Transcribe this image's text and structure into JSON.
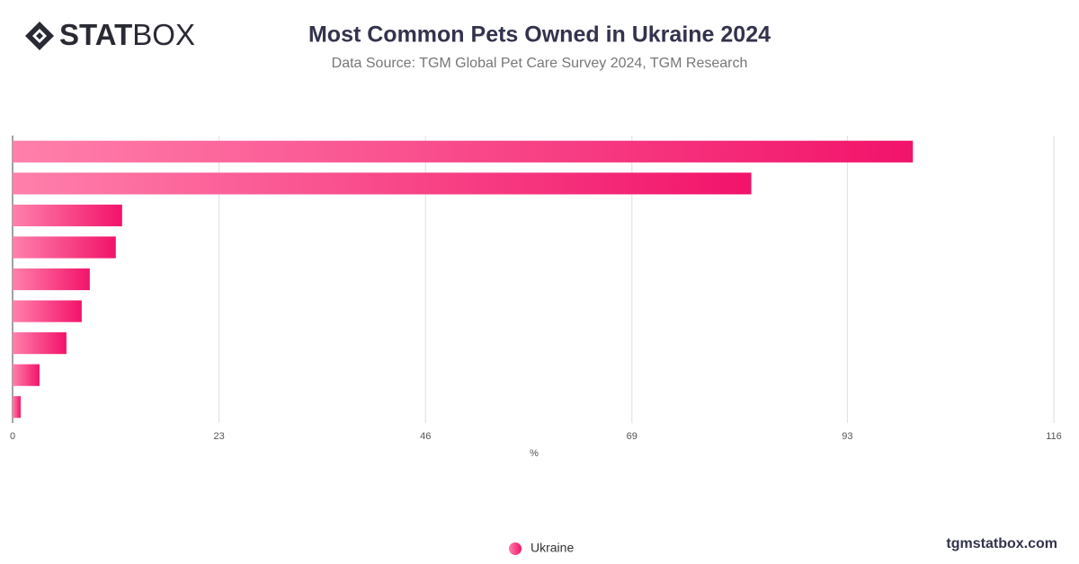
{
  "logo": {
    "bold": "STAT",
    "light": "BOX"
  },
  "footer": "tgmstatbox.com",
  "chart_data": {
    "type": "bar",
    "orientation": "horizontal",
    "title": "Most Common Pets Owned in Ukraine 2024",
    "subtitle": "Data Source: TGM Global Pet Care Survey 2024, TGM Research",
    "x_label": "%",
    "categories": [
      null,
      null,
      null,
      null,
      null,
      null,
      null,
      null,
      null
    ],
    "series": [
      {
        "name": "Ukraine",
        "color": [
          "#ff80ab",
          "#f2136a"
        ],
        "values": [
          100.3,
          82.3,
          12.2,
          11.5,
          8.6,
          7.7,
          6.0,
          3.0,
          0.9
        ]
      }
    ],
    "xlim": [
      0,
      116
    ],
    "xticks": [
      0,
      23,
      46,
      69,
      93,
      116
    ],
    "grid": true,
    "legend": "bottom"
  }
}
